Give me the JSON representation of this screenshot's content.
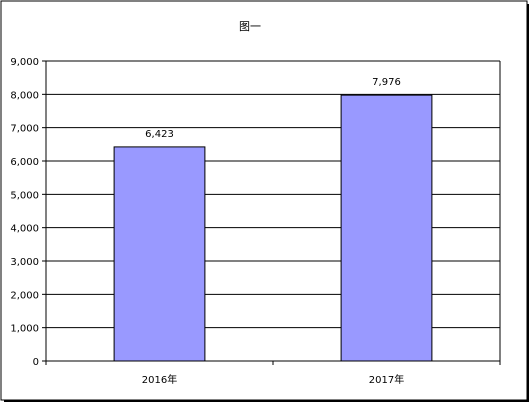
{
  "chart_data": {
    "type": "bar",
    "title": "图一",
    "categories": [
      "2016年",
      "2017年"
    ],
    "values": [
      6423,
      7976
    ],
    "value_labels": [
      "6,423",
      "7,976"
    ],
    "y_ticks": [
      "0",
      "1,000",
      "2,000",
      "3,000",
      "4,000",
      "5,000",
      "6,000",
      "7,000",
      "8,000",
      "9,000"
    ],
    "ylim": [
      0,
      9000
    ],
    "xlabel": "",
    "ylabel": "",
    "grid": true,
    "legend": "none",
    "bar_color": "#9999ff",
    "bar_edge_color": "#000000"
  }
}
